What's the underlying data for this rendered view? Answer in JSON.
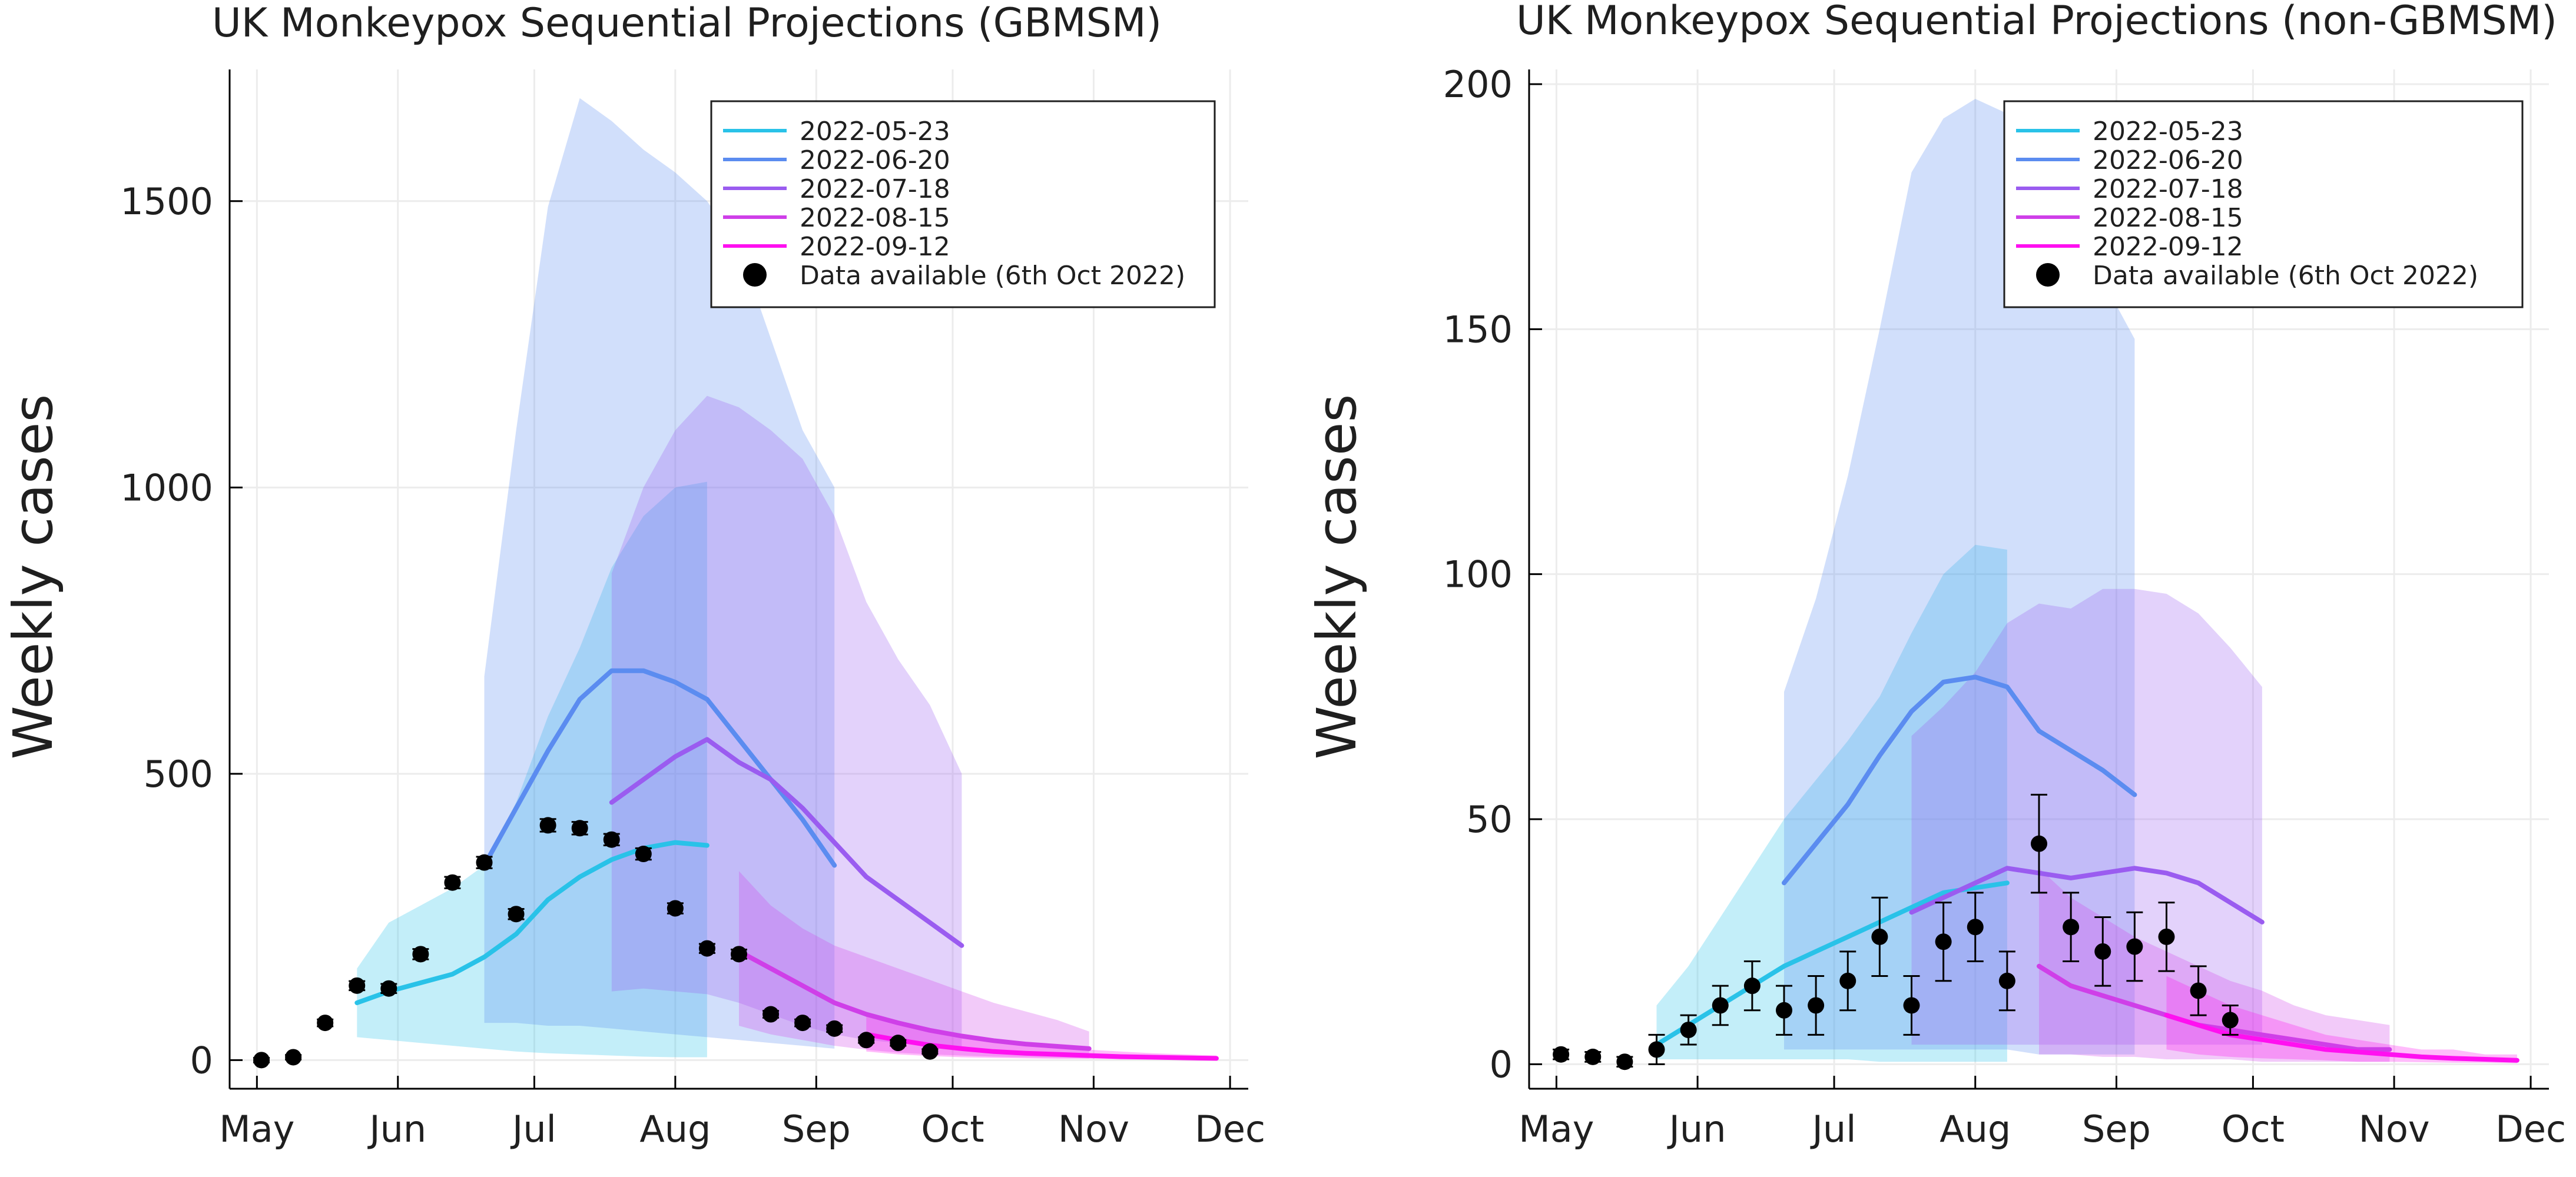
{
  "figure": {
    "months": [
      "May",
      "Jun",
      "Jul",
      "Aug",
      "Sep",
      "Oct",
      "Nov",
      "Dec"
    ],
    "legend": [
      "2022-05-23",
      "2022-06-20",
      "2022-07-18",
      "2022-08-15",
      "2022-09-12",
      "Data available (6th Oct 2022)"
    ],
    "colors": [
      "#29c2e8",
      "#5b8cf0",
      "#9a5cf0",
      "#cf3fe8",
      "#ff10f0"
    ]
  },
  "chart_data": [
    {
      "type": "line",
      "title": "UK Monkeypox Sequential Projections (GBMSM)",
      "ylabel": "Weekly cases",
      "xlabel": "",
      "x_range": [
        "2022-04-25",
        "2022-12-05"
      ],
      "ylim": [
        -50,
        1730
      ],
      "yticks": [
        0,
        500,
        1000,
        1500
      ],
      "grid": true,
      "legend_position": "top-right",
      "series": [
        {
          "name": "2022-05-23",
          "x": [
            "2022-05-23",
            "2022-05-30",
            "2022-06-06",
            "2022-06-13",
            "2022-06-20",
            "2022-06-27",
            "2022-07-04",
            "2022-07-11",
            "2022-07-18",
            "2022-07-25",
            "2022-08-01",
            "2022-08-08"
          ],
          "y": [
            100,
            120,
            135,
            150,
            180,
            220,
            280,
            320,
            350,
            370,
            380,
            375
          ],
          "lower": [
            40,
            35,
            30,
            25,
            20,
            15,
            12,
            10,
            8,
            6,
            5,
            5
          ],
          "upper": [
            160,
            240,
            270,
            300,
            340,
            450,
            600,
            720,
            860,
            950,
            1000,
            1010
          ]
        },
        {
          "name": "2022-06-20",
          "x": [
            "2022-06-20",
            "2022-06-27",
            "2022-07-04",
            "2022-07-11",
            "2022-07-18",
            "2022-07-25",
            "2022-08-01",
            "2022-08-08",
            "2022-08-15",
            "2022-08-22",
            "2022-08-29",
            "2022-09-05"
          ],
          "y": [
            340,
            440,
            540,
            630,
            680,
            680,
            660,
            630,
            560,
            490,
            420,
            340
          ],
          "lower": [
            65,
            65,
            60,
            60,
            55,
            50,
            45,
            40,
            35,
            30,
            25,
            20
          ],
          "upper": [
            670,
            1100,
            1490,
            1680,
            1640,
            1590,
            1550,
            1500,
            1420,
            1260,
            1100,
            1000
          ]
        },
        {
          "name": "2022-07-18",
          "x": [
            "2022-07-18",
            "2022-07-25",
            "2022-08-01",
            "2022-08-08",
            "2022-08-15",
            "2022-08-22",
            "2022-08-29",
            "2022-09-05",
            "2022-09-12",
            "2022-09-19",
            "2022-09-26",
            "2022-10-03"
          ],
          "y": [
            450,
            490,
            530,
            560,
            520,
            490,
            440,
            380,
            320,
            280,
            240,
            200
          ],
          "lower": [
            120,
            125,
            120,
            115,
            100,
            80,
            60,
            45,
            35,
            30,
            25,
            22
          ],
          "upper": [
            850,
            1000,
            1100,
            1160,
            1140,
            1100,
            1050,
            950,
            800,
            700,
            620,
            500
          ]
        },
        {
          "name": "2022-08-15",
          "x": [
            "2022-08-15",
            "2022-08-22",
            "2022-08-29",
            "2022-09-05",
            "2022-09-12",
            "2022-09-19",
            "2022-09-26",
            "2022-10-03",
            "2022-10-10",
            "2022-10-17",
            "2022-10-24",
            "2022-10-31"
          ],
          "y": [
            190,
            160,
            130,
            100,
            80,
            65,
            52,
            42,
            34,
            28,
            24,
            20
          ],
          "lower": [
            60,
            45,
            35,
            25,
            18,
            13,
            10,
            8,
            6,
            5,
            4,
            3
          ],
          "upper": [
            330,
            270,
            230,
            200,
            180,
            160,
            140,
            120,
            100,
            85,
            70,
            50
          ]
        },
        {
          "name": "2022-09-12",
          "x": [
            "2022-09-12",
            "2022-09-19",
            "2022-09-26",
            "2022-10-03",
            "2022-10-10",
            "2022-10-17",
            "2022-10-24",
            "2022-10-31",
            "2022-11-07",
            "2022-11-14",
            "2022-11-21",
            "2022-11-28"
          ],
          "y": [
            45,
            35,
            26,
            20,
            15,
            12,
            10,
            8,
            6,
            5,
            4,
            3
          ],
          "lower": [
            15,
            10,
            7,
            5,
            4,
            3,
            2,
            2,
            1,
            1,
            1,
            1
          ],
          "upper": [
            80,
            65,
            50,
            40,
            32,
            26,
            22,
            18,
            15,
            12,
            10,
            8
          ]
        }
      ],
      "points": {
        "name": "Data available (6th Oct 2022)",
        "x": [
          "2022-05-02",
          "2022-05-09",
          "2022-05-16",
          "2022-05-23",
          "2022-05-30",
          "2022-06-06",
          "2022-06-13",
          "2022-06-20",
          "2022-06-27",
          "2022-07-04",
          "2022-07-11",
          "2022-07-18",
          "2022-07-25",
          "2022-08-01",
          "2022-08-08",
          "2022-08-15",
          "2022-08-22",
          "2022-08-29",
          "2022-09-05",
          "2022-09-12",
          "2022-09-19",
          "2022-09-26"
        ],
        "y": [
          0,
          5,
          65,
          130,
          125,
          185,
          310,
          345,
          255,
          410,
          405,
          385,
          360,
          265,
          195,
          185,
          80,
          65,
          55,
          35,
          30,
          15
        ],
        "err": [
          4,
          4,
          6,
          8,
          8,
          9,
          10,
          10,
          9,
          11,
          11,
          10,
          10,
          9,
          8,
          8,
          6,
          6,
          6,
          5,
          5,
          4
        ]
      }
    },
    {
      "type": "line",
      "title": "UK Monkeypox Sequential Projections (non-GBMSM)",
      "ylabel": "Weekly cases",
      "xlabel": "",
      "x_range": [
        "2022-04-25",
        "2022-12-05"
      ],
      "ylim": [
        -5,
        203
      ],
      "yticks": [
        0,
        50,
        100,
        150,
        200
      ],
      "grid": true,
      "legend_position": "top-right",
      "series": [
        {
          "name": "2022-05-23",
          "x": [
            "2022-05-23",
            "2022-05-30",
            "2022-06-06",
            "2022-06-13",
            "2022-06-20",
            "2022-06-27",
            "2022-07-04",
            "2022-07-11",
            "2022-07-18",
            "2022-07-25",
            "2022-08-01",
            "2022-08-08"
          ],
          "y": [
            4,
            8,
            12,
            16,
            20,
            23,
            26,
            29,
            32,
            35,
            36,
            37
          ],
          "lower": [
            1,
            1,
            1,
            1,
            1,
            1,
            1,
            0.5,
            0.5,
            0.5,
            0.5,
            0.5
          ],
          "upper": [
            12,
            20,
            30,
            40,
            50,
            58,
            66,
            75,
            88,
            100,
            106,
            105
          ]
        },
        {
          "name": "2022-06-20",
          "x": [
            "2022-06-20",
            "2022-06-27",
            "2022-07-04",
            "2022-07-11",
            "2022-07-18",
            "2022-07-25",
            "2022-08-01",
            "2022-08-08",
            "2022-08-15",
            "2022-08-22",
            "2022-08-29",
            "2022-09-05"
          ],
          "y": [
            37,
            45,
            53,
            63,
            72,
            78,
            79,
            77,
            68,
            64,
            60,
            55
          ],
          "lower": [
            3,
            3,
            3,
            3,
            3,
            3,
            3,
            3,
            2,
            2,
            2,
            2
          ],
          "upper": [
            76,
            95,
            120,
            150,
            182,
            193,
            197,
            194,
            185,
            172,
            160,
            148
          ]
        },
        {
          "name": "2022-07-18",
          "x": [
            "2022-07-18",
            "2022-07-25",
            "2022-08-01",
            "2022-08-08",
            "2022-08-15",
            "2022-08-22",
            "2022-08-29",
            "2022-09-05",
            "2022-09-12",
            "2022-09-19",
            "2022-09-26",
            "2022-10-03"
          ],
          "y": [
            31,
            34,
            37,
            40,
            39,
            38,
            39,
            40,
            39,
            37,
            33,
            29
          ],
          "lower": [
            4,
            4,
            4,
            4,
            4,
            4,
            4,
            4,
            4,
            4,
            4,
            4
          ],
          "upper": [
            67,
            73,
            80,
            90,
            94,
            93,
            97,
            97,
            96,
            92,
            85,
            77
          ]
        },
        {
          "name": "2022-08-15",
          "x": [
            "2022-08-15",
            "2022-08-22",
            "2022-08-29",
            "2022-09-05",
            "2022-09-12",
            "2022-09-19",
            "2022-09-26",
            "2022-10-03",
            "2022-10-10",
            "2022-10-17",
            "2022-10-24",
            "2022-10-31"
          ],
          "y": [
            20,
            16,
            14,
            12,
            10,
            8,
            7,
            6,
            5,
            4,
            3,
            3
          ],
          "lower": [
            2,
            2,
            1.5,
            1.5,
            1,
            1,
            1,
            0.5,
            0.5,
            0.5,
            0.5,
            0.5
          ],
          "upper": [
            40,
            34,
            30,
            26,
            23,
            20,
            17,
            15,
            12,
            10,
            9,
            8
          ]
        },
        {
          "name": "2022-09-12",
          "x": [
            "2022-09-12",
            "2022-09-19",
            "2022-09-26",
            "2022-10-03",
            "2022-10-10",
            "2022-10-17",
            "2022-10-24",
            "2022-10-31",
            "2022-11-07",
            "2022-11-14",
            "2022-11-21",
            "2022-11-28"
          ],
          "y": [
            10,
            8,
            6,
            5,
            4,
            3,
            2.5,
            2,
            1.5,
            1.2,
            1,
            0.8
          ],
          "lower": [
            3,
            2,
            1.5,
            1.2,
            1,
            0.8,
            0.5,
            0.5,
            0.4,
            0.3,
            0.3,
            0.2
          ],
          "upper": [
            18,
            15,
            12,
            10,
            8,
            6,
            5,
            4,
            3,
            3,
            2,
            2
          ]
        }
      ],
      "points": {
        "name": "Data available (6th Oct 2022)",
        "x": [
          "2022-05-02",
          "2022-05-09",
          "2022-05-16",
          "2022-05-23",
          "2022-05-30",
          "2022-06-06",
          "2022-06-13",
          "2022-06-20",
          "2022-06-27",
          "2022-07-04",
          "2022-07-11",
          "2022-07-18",
          "2022-07-25",
          "2022-08-01",
          "2022-08-08",
          "2022-08-15",
          "2022-08-22",
          "2022-08-29",
          "2022-09-05",
          "2022-09-12",
          "2022-09-19",
          "2022-09-26"
        ],
        "y": [
          2,
          1.5,
          0.5,
          3,
          7,
          12,
          16,
          11,
          12,
          17,
          26,
          12,
          25,
          28,
          17,
          45,
          28,
          23,
          24,
          26,
          15,
          9
        ],
        "err": [
          1,
          1,
          1,
          3,
          3,
          4,
          5,
          5,
          6,
          6,
          8,
          6,
          8,
          7,
          6,
          10,
          7,
          7,
          7,
          7,
          5,
          3
        ]
      }
    }
  ]
}
